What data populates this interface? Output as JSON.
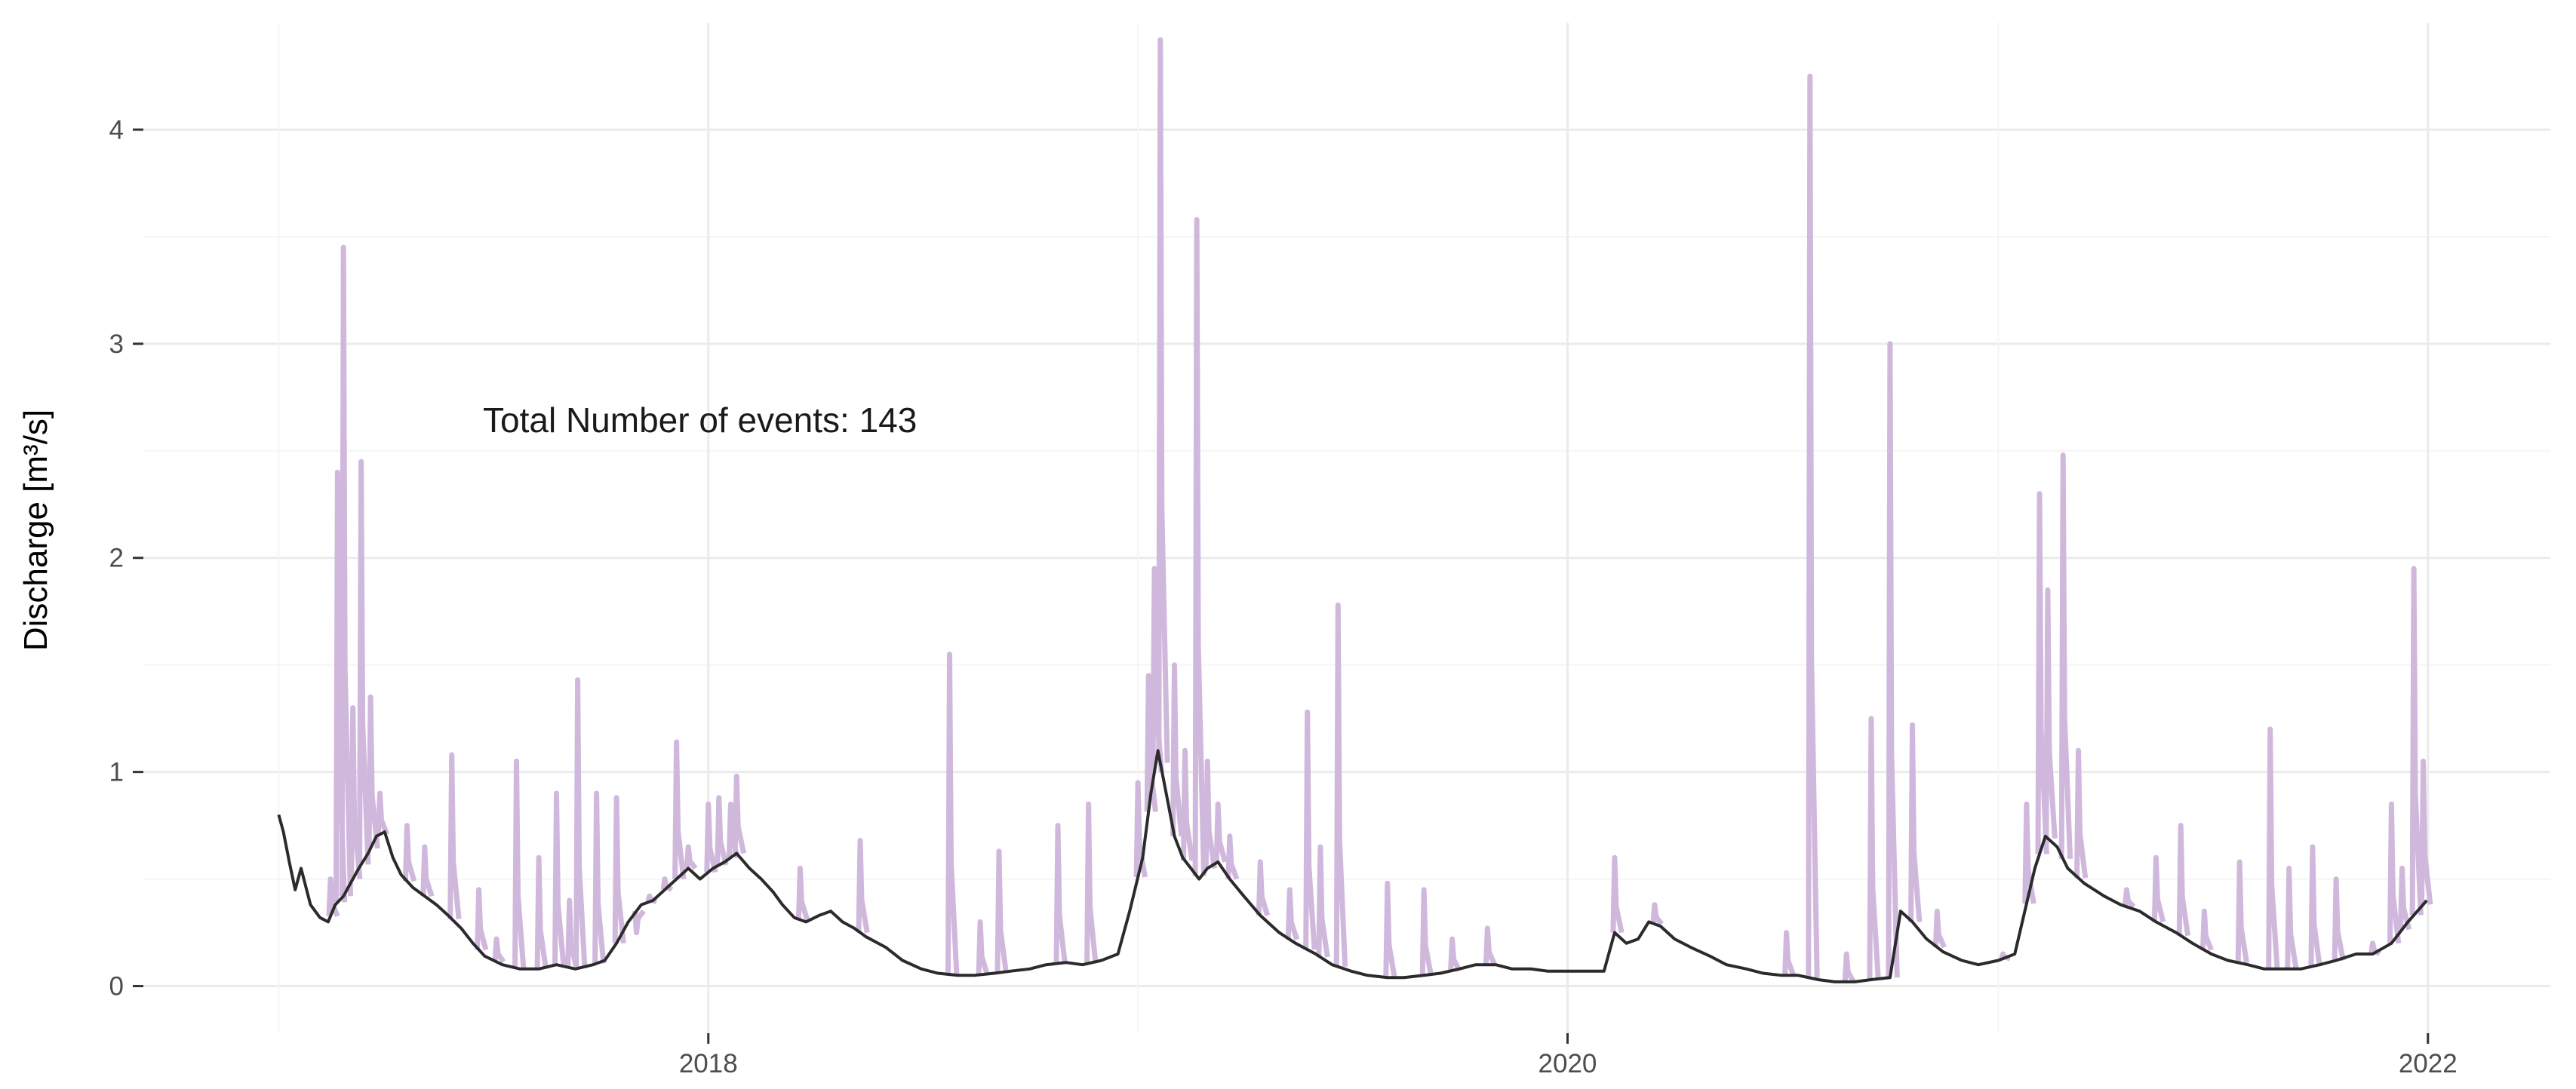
{
  "chart_data": {
    "type": "line",
    "title": "",
    "xlabel": "",
    "ylabel": "Discharge [m³/s]",
    "annotation": "Total Number of events: 143",
    "x_ticks": [
      "2018",
      "2020",
      "2022"
    ],
    "y_ticks": [
      "0",
      "1",
      "2",
      "3",
      "4"
    ],
    "xlim": [
      "2016-09-08",
      "2022-04-15"
    ],
    "ylim": [
      -0.22,
      4.5
    ],
    "grid": true,
    "legend": "none",
    "colors": {
      "baseflow": "#2b2b2b",
      "events": "#cfb8dc"
    },
    "series": [
      {
        "role": "baseflow",
        "points": [
          [
            "2017-01-01",
            0.8
          ],
          [
            "2017-01-05",
            0.72
          ],
          [
            "2017-01-10",
            0.58
          ],
          [
            "2017-01-15",
            0.45
          ],
          [
            "2017-01-20",
            0.55
          ],
          [
            "2017-01-28",
            0.38
          ],
          [
            "2017-02-05",
            0.32
          ],
          [
            "2017-02-12",
            0.3
          ],
          [
            "2017-02-18",
            0.38
          ],
          [
            "2017-02-25",
            0.42
          ],
          [
            "2017-03-03",
            0.48
          ],
          [
            "2017-03-10",
            0.55
          ],
          [
            "2017-03-18",
            0.62
          ],
          [
            "2017-03-25",
            0.7
          ],
          [
            "2017-04-01",
            0.72
          ],
          [
            "2017-04-08",
            0.6
          ],
          [
            "2017-04-15",
            0.52
          ],
          [
            "2017-04-25",
            0.46
          ],
          [
            "2017-05-05",
            0.42
          ],
          [
            "2017-05-15",
            0.38
          ],
          [
            "2017-05-25",
            0.33
          ],
          [
            "2017-06-05",
            0.27
          ],
          [
            "2017-06-15",
            0.2
          ],
          [
            "2017-06-25",
            0.14
          ],
          [
            "2017-07-10",
            0.1
          ],
          [
            "2017-07-25",
            0.08
          ],
          [
            "2017-08-10",
            0.08
          ],
          [
            "2017-08-25",
            0.1
          ],
          [
            "2017-09-10",
            0.08
          ],
          [
            "2017-09-25",
            0.1
          ],
          [
            "2017-10-05",
            0.12
          ],
          [
            "2017-10-15",
            0.2
          ],
          [
            "2017-10-25",
            0.3
          ],
          [
            "2017-11-05",
            0.38
          ],
          [
            "2017-11-15",
            0.4
          ],
          [
            "2017-11-25",
            0.45
          ],
          [
            "2017-12-05",
            0.5
          ],
          [
            "2017-12-15",
            0.55
          ],
          [
            "2017-12-25",
            0.5
          ],
          [
            "2018-01-05",
            0.55
          ],
          [
            "2018-01-15",
            0.58
          ],
          [
            "2018-01-25",
            0.62
          ],
          [
            "2018-02-05",
            0.55
          ],
          [
            "2018-02-15",
            0.5
          ],
          [
            "2018-02-25",
            0.44
          ],
          [
            "2018-03-05",
            0.38
          ],
          [
            "2018-03-15",
            0.32
          ],
          [
            "2018-03-25",
            0.3
          ],
          [
            "2018-04-05",
            0.33
          ],
          [
            "2018-04-15",
            0.35
          ],
          [
            "2018-04-25",
            0.3
          ],
          [
            "2018-05-05",
            0.27
          ],
          [
            "2018-05-15",
            0.23
          ],
          [
            "2018-06-01",
            0.18
          ],
          [
            "2018-06-15",
            0.12
          ],
          [
            "2018-07-01",
            0.08
          ],
          [
            "2018-07-15",
            0.06
          ],
          [
            "2018-08-01",
            0.05
          ],
          [
            "2018-08-15",
            0.05
          ],
          [
            "2018-09-01",
            0.06
          ],
          [
            "2018-09-15",
            0.07
          ],
          [
            "2018-10-01",
            0.08
          ],
          [
            "2018-10-15",
            0.1
          ],
          [
            "2018-11-01",
            0.11
          ],
          [
            "2018-11-15",
            0.1
          ],
          [
            "2018-12-01",
            0.12
          ],
          [
            "2018-12-15",
            0.15
          ],
          [
            "2018-12-25",
            0.35
          ],
          [
            "2019-01-05",
            0.6
          ],
          [
            "2019-01-12",
            0.9
          ],
          [
            "2019-01-18",
            1.1
          ],
          [
            "2019-01-25",
            0.9
          ],
          [
            "2019-02-01",
            0.7
          ],
          [
            "2019-02-08",
            0.6
          ],
          [
            "2019-02-15",
            0.55
          ],
          [
            "2019-02-22",
            0.5
          ],
          [
            "2019-03-01",
            0.55
          ],
          [
            "2019-03-10",
            0.58
          ],
          [
            "2019-03-20",
            0.5
          ],
          [
            "2019-04-01",
            0.42
          ],
          [
            "2019-04-15",
            0.33
          ],
          [
            "2019-05-01",
            0.25
          ],
          [
            "2019-05-15",
            0.2
          ],
          [
            "2019-06-01",
            0.15
          ],
          [
            "2019-06-15",
            0.1
          ],
          [
            "2019-07-01",
            0.07
          ],
          [
            "2019-07-15",
            0.05
          ],
          [
            "2019-08-01",
            0.04
          ],
          [
            "2019-08-15",
            0.04
          ],
          [
            "2019-09-01",
            0.05
          ],
          [
            "2019-09-15",
            0.06
          ],
          [
            "2019-10-01",
            0.08
          ],
          [
            "2019-10-15",
            0.1
          ],
          [
            "2019-11-01",
            0.1
          ],
          [
            "2019-11-15",
            0.08
          ],
          [
            "2019-12-01",
            0.08
          ],
          [
            "2019-12-15",
            0.07
          ],
          [
            "2020-01-01",
            0.07
          ],
          [
            "2020-01-15",
            0.07
          ],
          [
            "2020-02-01",
            0.07
          ],
          [
            "2020-02-10",
            0.25
          ],
          [
            "2020-02-20",
            0.2
          ],
          [
            "2020-03-01",
            0.22
          ],
          [
            "2020-03-10",
            0.3
          ],
          [
            "2020-03-20",
            0.28
          ],
          [
            "2020-04-01",
            0.22
          ],
          [
            "2020-04-15",
            0.18
          ],
          [
            "2020-05-01",
            0.14
          ],
          [
            "2020-05-15",
            0.1
          ],
          [
            "2020-06-01",
            0.08
          ],
          [
            "2020-06-15",
            0.06
          ],
          [
            "2020-07-01",
            0.05
          ],
          [
            "2020-07-15",
            0.05
          ],
          [
            "2020-08-01",
            0.03
          ],
          [
            "2020-08-15",
            0.02
          ],
          [
            "2020-09-01",
            0.02
          ],
          [
            "2020-09-15",
            0.03
          ],
          [
            "2020-10-01",
            0.04
          ],
          [
            "2020-10-10",
            0.35
          ],
          [
            "2020-10-20",
            0.3
          ],
          [
            "2020-11-01",
            0.22
          ],
          [
            "2020-11-15",
            0.16
          ],
          [
            "2020-12-01",
            0.12
          ],
          [
            "2020-12-15",
            0.1
          ],
          [
            "2021-01-01",
            0.12
          ],
          [
            "2021-01-15",
            0.15
          ],
          [
            "2021-02-01",
            0.55
          ],
          [
            "2021-02-10",
            0.7
          ],
          [
            "2021-02-20",
            0.65
          ],
          [
            "2021-03-01",
            0.55
          ],
          [
            "2021-03-15",
            0.48
          ],
          [
            "2021-04-01",
            0.42
          ],
          [
            "2021-04-15",
            0.38
          ],
          [
            "2021-05-01",
            0.35
          ],
          [
            "2021-05-15",
            0.3
          ],
          [
            "2021-06-01",
            0.25
          ],
          [
            "2021-06-15",
            0.2
          ],
          [
            "2021-07-01",
            0.15
          ],
          [
            "2021-07-15",
            0.12
          ],
          [
            "2021-08-01",
            0.1
          ],
          [
            "2021-08-15",
            0.08
          ],
          [
            "2021-09-01",
            0.08
          ],
          [
            "2021-09-15",
            0.08
          ],
          [
            "2021-10-01",
            0.1
          ],
          [
            "2021-10-15",
            0.12
          ],
          [
            "2021-11-01",
            0.15
          ],
          [
            "2021-11-15",
            0.15
          ],
          [
            "2021-12-01",
            0.2
          ],
          [
            "2021-12-15",
            0.3
          ],
          [
            "2021-12-31",
            0.4
          ]
        ]
      },
      {
        "role": "events",
        "peaks": [
          [
            "2017-02-14",
            0.5
          ],
          [
            "2017-02-20",
            2.4
          ],
          [
            "2017-02-25",
            3.45
          ],
          [
            "2017-03-05",
            1.3
          ],
          [
            "2017-03-12",
            2.45
          ],
          [
            "2017-03-20",
            1.35
          ],
          [
            "2017-03-28",
            0.9
          ],
          [
            "2017-04-20",
            0.75
          ],
          [
            "2017-05-05",
            0.65
          ],
          [
            "2017-05-28",
            1.08
          ],
          [
            "2017-06-20",
            0.45
          ],
          [
            "2017-07-05",
            0.22
          ],
          [
            "2017-07-22",
            1.05
          ],
          [
            "2017-08-10",
            0.6
          ],
          [
            "2017-08-25",
            0.9
          ],
          [
            "2017-09-05",
            0.4
          ],
          [
            "2017-09-12",
            1.43
          ],
          [
            "2017-09-28",
            0.9
          ],
          [
            "2017-10-15",
            0.88
          ],
          [
            "2017-11-01",
            0.25
          ],
          [
            "2017-11-12",
            0.42
          ],
          [
            "2017-11-25",
            0.5
          ],
          [
            "2017-12-05",
            1.14
          ],
          [
            "2017-12-15",
            0.65
          ],
          [
            "2018-01-01",
            0.85
          ],
          [
            "2018-01-10",
            0.88
          ],
          [
            "2018-01-20",
            0.85
          ],
          [
            "2018-01-25",
            0.98
          ],
          [
            "2018-03-20",
            0.55
          ],
          [
            "2018-05-10",
            0.68
          ],
          [
            "2018-07-25",
            1.55
          ],
          [
            "2018-08-20",
            0.3
          ],
          [
            "2018-09-05",
            0.63
          ],
          [
            "2018-10-25",
            0.75
          ],
          [
            "2018-11-20",
            0.85
          ],
          [
            "2019-01-01",
            0.95
          ],
          [
            "2019-01-10",
            1.45
          ],
          [
            "2019-01-15",
            1.95
          ],
          [
            "2019-01-20",
            4.42
          ],
          [
            "2019-02-01",
            1.5
          ],
          [
            "2019-02-10",
            1.1
          ],
          [
            "2019-02-20",
            3.58
          ],
          [
            "2019-03-01",
            1.05
          ],
          [
            "2019-03-10",
            0.85
          ],
          [
            "2019-03-20",
            0.7
          ],
          [
            "2019-04-15",
            0.58
          ],
          [
            "2019-05-10",
            0.45
          ],
          [
            "2019-05-25",
            1.28
          ],
          [
            "2019-06-05",
            0.65
          ],
          [
            "2019-06-20",
            1.78
          ],
          [
            "2019-08-01",
            0.48
          ],
          [
            "2019-09-01",
            0.45
          ],
          [
            "2019-09-25",
            0.22
          ],
          [
            "2019-10-25",
            0.27
          ],
          [
            "2020-02-10",
            0.6
          ],
          [
            "2020-03-15",
            0.38
          ],
          [
            "2020-07-05",
            0.25
          ],
          [
            "2020-07-25",
            4.25
          ],
          [
            "2020-08-25",
            0.15
          ],
          [
            "2020-09-15",
            1.25
          ],
          [
            "2020-10-01",
            3.0
          ],
          [
            "2020-10-20",
            1.22
          ],
          [
            "2020-11-10",
            0.35
          ],
          [
            "2021-01-05",
            0.15
          ],
          [
            "2021-01-25",
            0.85
          ],
          [
            "2021-02-05",
            2.3
          ],
          [
            "2021-02-12",
            1.85
          ],
          [
            "2021-02-25",
            2.48
          ],
          [
            "2021-03-10",
            1.1
          ],
          [
            "2021-04-20",
            0.45
          ],
          [
            "2021-05-15",
            0.6
          ],
          [
            "2021-06-05",
            0.75
          ],
          [
            "2021-06-25",
            0.35
          ],
          [
            "2021-07-25",
            0.58
          ],
          [
            "2021-08-20",
            1.2
          ],
          [
            "2021-09-05",
            0.55
          ],
          [
            "2021-09-25",
            0.65
          ],
          [
            "2021-10-15",
            0.5
          ],
          [
            "2021-11-15",
            0.2
          ],
          [
            "2021-12-01",
            0.85
          ],
          [
            "2021-12-10",
            0.55
          ],
          [
            "2021-12-20",
            1.95
          ],
          [
            "2021-12-28",
            1.05
          ]
        ]
      }
    ]
  }
}
